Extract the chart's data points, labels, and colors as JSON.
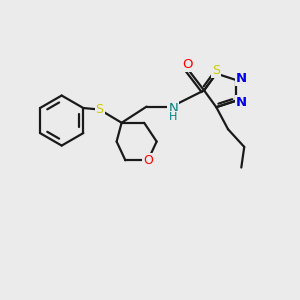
{
  "bg_color": "#ebebeb",
  "bond_color": "#1a1a1a",
  "atom_colors": {
    "O": "#ff0000",
    "N": "#0000ee",
    "NH": "#008080",
    "S": "#cccc00"
  },
  "figsize": [
    3.0,
    3.0
  ],
  "dpi": 100,
  "lw": 1.6
}
